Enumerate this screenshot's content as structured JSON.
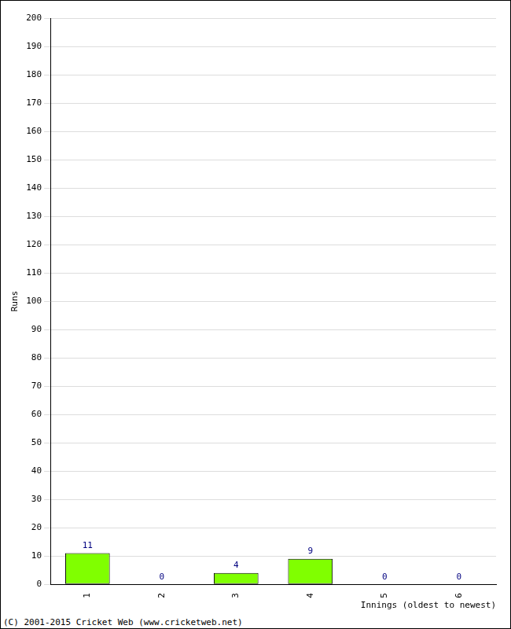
{
  "chart_data": {
    "type": "bar",
    "categories": [
      "1",
      "2",
      "3",
      "4",
      "5",
      "6"
    ],
    "values": [
      11,
      0,
      4,
      9,
      0,
      0
    ],
    "color": "#80ff00",
    "xlabel": "Innings (oldest to newest)",
    "ylabel": "Runs",
    "annotations": [
      "(C) 2001-2015 Cricket Web (www.cricketweb.net)"
    ],
    "ylim": [
      0,
      200
    ],
    "yticks": [
      0,
      10,
      20,
      30,
      40,
      50,
      60,
      70,
      80,
      90,
      100,
      110,
      120,
      130,
      140,
      150,
      160,
      170,
      180,
      190,
      200
    ],
    "grid": true,
    "data_labels": true
  }
}
